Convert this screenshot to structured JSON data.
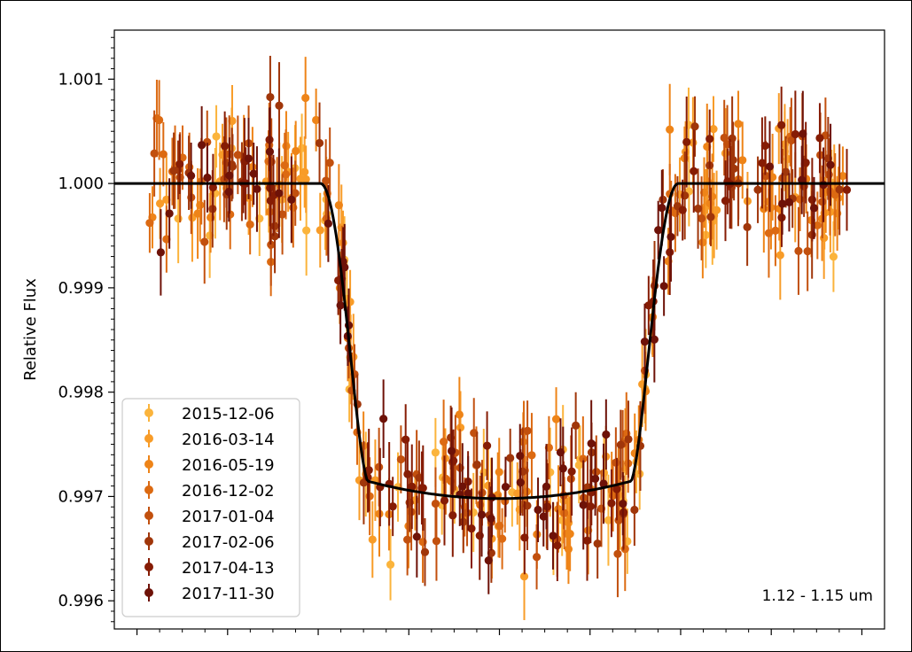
{
  "chart_data": {
    "type": "scatter",
    "title": "",
    "xlabel": "",
    "ylabel": "Relative Flux",
    "annotation": "1.12 - 1.15 um",
    "ylim": [
      0.99573,
      1.00147
    ],
    "xlim": [
      -0.085,
      0.085
    ],
    "y_ticks": [
      "0.996",
      "0.997",
      "0.998",
      "0.999",
      "1.000",
      "1.001"
    ],
    "y_tick_values": [
      0.996,
      0.997,
      0.998,
      0.999,
      1.0,
      1.001
    ],
    "x_major_ticks": [
      -0.08,
      -0.06,
      -0.04,
      -0.02,
      0.0,
      0.02,
      0.04,
      0.06,
      0.08
    ],
    "x_minor_step": 0.005,
    "x_tick_labels_shown": false,
    "grid": false,
    "legend_position": "lower-left",
    "model": {
      "color": "#000000",
      "baseline": 1.0,
      "depth": 0.00302,
      "ingress_start": -0.0395,
      "ingress_end": -0.029,
      "egress_start": 0.029,
      "egress_end": 0.0395,
      "limb_darkening": 0.22
    },
    "series": [
      {
        "name": "2015-12-06",
        "color": "#fbb43c"
      },
      {
        "name": "2016-03-14",
        "color": "#f89c28"
      },
      {
        "name": "2016-05-19",
        "color": "#ee8418"
      },
      {
        "name": "2016-12-02",
        "color": "#dc6a12"
      },
      {
        "name": "2017-01-04",
        "color": "#c2500e"
      },
      {
        "name": "2017-02-06",
        "color": "#a0360a"
      },
      {
        "name": "2017-04-13",
        "color": "#861c04"
      },
      {
        "name": "2017-11-30",
        "color": "#6e1208"
      }
    ],
    "points_per_series": 58,
    "point_scatter": 0.00031,
    "typical_error": 0.00035
  }
}
